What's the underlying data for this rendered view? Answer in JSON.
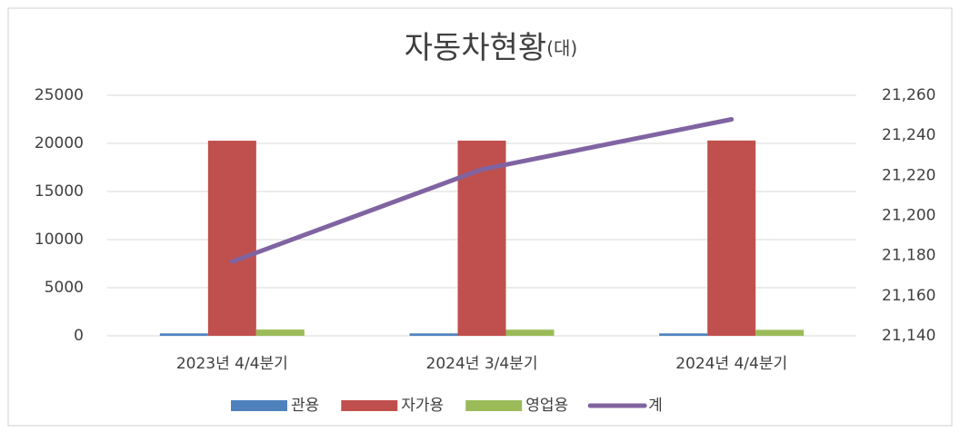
{
  "chart_data": {
    "type": "bar",
    "title": "자동차현황",
    "unit": "(대)",
    "categories": [
      "2023년 4/4분기",
      "2024년 3/4분기",
      "2024년 4/4분기"
    ],
    "series": [
      {
        "name": "관용",
        "color": "#4f81bd",
        "values": [
          250,
          250,
          250
        ]
      },
      {
        "name": "자가용",
        "color": "#c0504d",
        "values": [
          20280,
          20290,
          20300
        ]
      },
      {
        "name": "영업용",
        "color": "#9bbb59",
        "values": [
          650,
          640,
          620
        ]
      },
      {
        "name": "계",
        "color": "#8064a2",
        "type": "line",
        "axis": "y2",
        "values": [
          21177,
          21223,
          21248
        ]
      }
    ],
    "ylim": [
      0,
      25000
    ],
    "yticks": [
      0,
      5000,
      10000,
      15000,
      20000,
      25000
    ],
    "y2lim": [
      21140,
      21260
    ],
    "y2ticks": [
      {
        "value": 21140,
        "label": "21,140"
      },
      {
        "value": 21160,
        "label": "21,160"
      },
      {
        "value": 21180,
        "label": "21,180"
      },
      {
        "value": 21200,
        "label": "21,200"
      },
      {
        "value": 21220,
        "label": "21,220"
      },
      {
        "value": 21240,
        "label": "21,240"
      },
      {
        "value": 21260,
        "label": "21,260"
      }
    ],
    "grid": true,
    "legend": "bottom"
  }
}
